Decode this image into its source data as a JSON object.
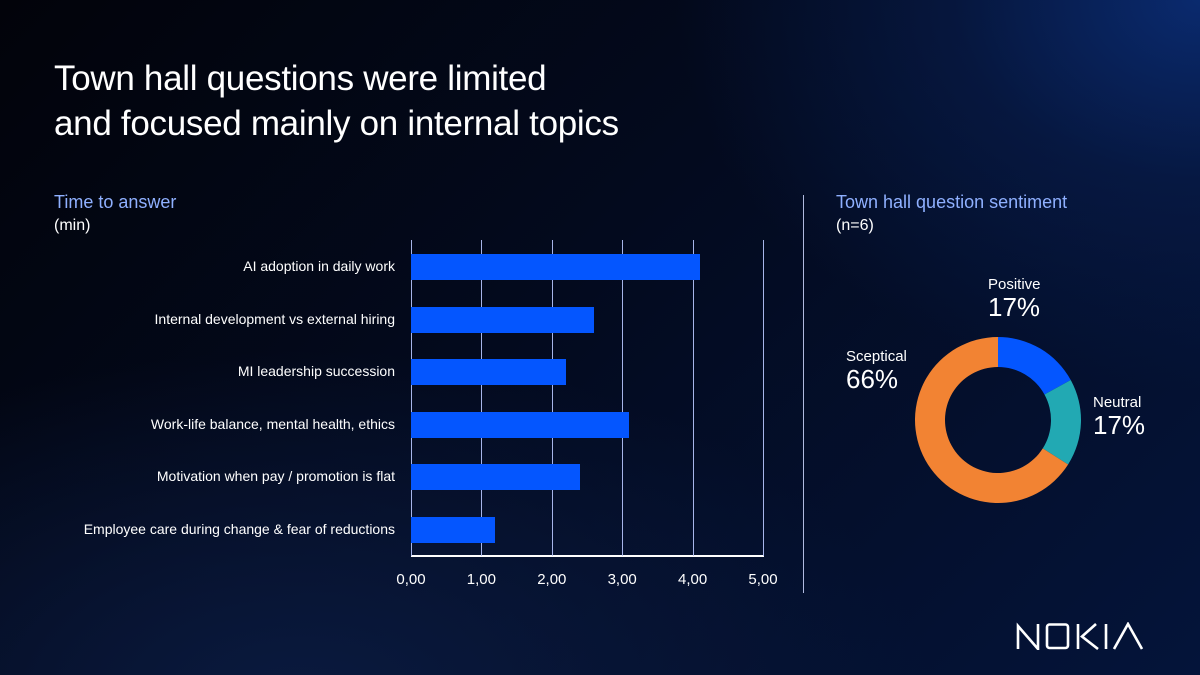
{
  "slide": {
    "title_lines": [
      "Town hall questions were limited",
      "and focused mainly on internal topics"
    ],
    "brand": "NOKIA"
  },
  "left_panel": {
    "title": "Time to answer",
    "subtitle": "(min)"
  },
  "right_panel": {
    "title": "Town hall question sentiment",
    "subtitle": "(n=6)"
  },
  "colors": {
    "bar": "#0456ff",
    "positive": "#0456ff",
    "neutral": "#22a9b3",
    "sceptical": "#f28333",
    "accent_text": "#8fb0ff"
  },
  "chart_data": [
    {
      "type": "bar",
      "orientation": "horizontal",
      "title": "Time to answer",
      "xlabel": "",
      "ylabel": "",
      "unit": "min",
      "categories": [
        "AI adoption in daily work",
        "Internal development vs external hiring",
        "MI leadership succession",
        "Work-life balance, mental health, ethics",
        "Motivation when pay / promotion is flat",
        "Employee care during change & fear of reductions"
      ],
      "values": [
        4.1,
        2.6,
        2.2,
        3.1,
        2.4,
        1.2
      ],
      "xlim": [
        0,
        5
      ],
      "xticks": [
        "0,00",
        "1,00",
        "2,00",
        "3,00",
        "4,00",
        "5,00"
      ],
      "grid": true,
      "legend": "none"
    },
    {
      "type": "pie",
      "donut": true,
      "title": "Town hall question sentiment",
      "subtitle": "(n=6)",
      "categories": [
        "Positive",
        "Neutral",
        "Sceptical"
      ],
      "values": [
        17,
        17,
        66
      ],
      "labels": [
        "17%",
        "17%",
        "66%"
      ],
      "colors": [
        "#0456ff",
        "#22a9b3",
        "#f28333"
      ],
      "legend": "inline labels"
    }
  ]
}
